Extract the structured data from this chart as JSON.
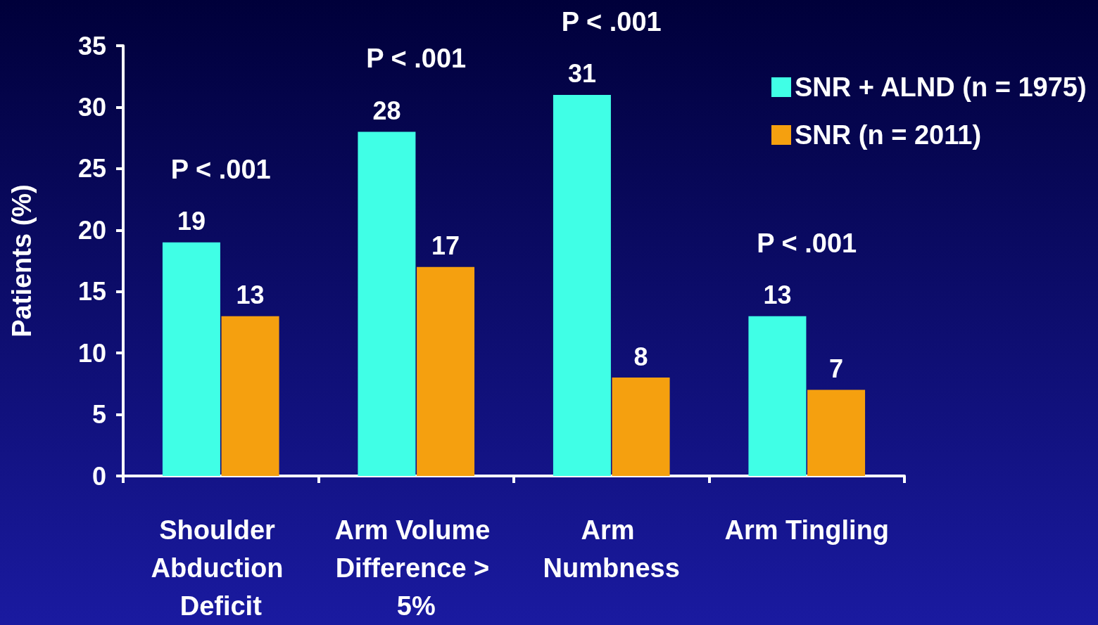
{
  "chart_data": {
    "type": "bar",
    "ylabel": "Patients (%)",
    "categories": [
      "Shoulder Abduction Deficit",
      "Arm Volume Difference > 5%",
      "Arm Numbness",
      "Arm Tingling"
    ],
    "series": [
      {
        "name": "SNR + ALND (n = 1975)",
        "color": "#40ffe6",
        "values": [
          19,
          28,
          31,
          13
        ]
      },
      {
        "name": "SNR (n = 2011)",
        "color": "#f5a00f",
        "values": [
          13,
          17,
          8,
          7
        ]
      }
    ],
    "ylim": [
      0,
      35
    ],
    "yticks": [
      0,
      5,
      10,
      15,
      20,
      25,
      30,
      35
    ],
    "data_labels": true,
    "grid": false,
    "legend": "top right",
    "annotations": [
      "P < .001",
      "P < .001",
      "P < .001",
      "P < .001"
    ]
  }
}
